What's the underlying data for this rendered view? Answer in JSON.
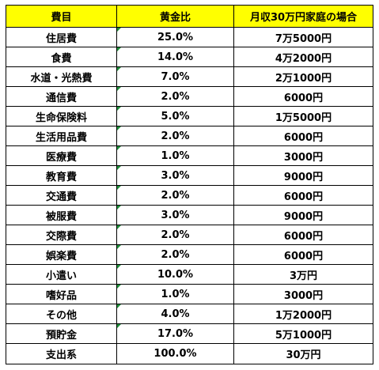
{
  "table": {
    "headers": [
      "費目",
      "黄金比",
      "月収30万円家庭の場合"
    ],
    "rows": [
      {
        "item": "住居費",
        "ratio": "25.0%",
        "amount": "7万5000円"
      },
      {
        "item": "食費",
        "ratio": "14.0%",
        "amount": "4万2000円"
      },
      {
        "item": "水道・光熱費",
        "ratio": "7.0%",
        "amount": "2万1000円"
      },
      {
        "item": "通信費",
        "ratio": "2.0%",
        "amount": "6000円"
      },
      {
        "item": "生命保険料",
        "ratio": "5.0%",
        "amount": "1万5000円"
      },
      {
        "item": "生活用品費",
        "ratio": "2.0%",
        "amount": "6000円"
      },
      {
        "item": "医療費",
        "ratio": "1.0%",
        "amount": "3000円"
      },
      {
        "item": "教育費",
        "ratio": "3.0%",
        "amount": "9000円"
      },
      {
        "item": "交通費",
        "ratio": "2.0%",
        "amount": "6000円"
      },
      {
        "item": "被服費",
        "ratio": "3.0%",
        "amount": "9000円"
      },
      {
        "item": "交際費",
        "ratio": "2.0%",
        "amount": "6000円"
      },
      {
        "item": "娯楽費",
        "ratio": "2.0%",
        "amount": "6000円"
      },
      {
        "item": "小遣い",
        "ratio": "10.0%",
        "amount": "3万円"
      },
      {
        "item": "嗜好品",
        "ratio": "1.0%",
        "amount": "3000円"
      },
      {
        "item": "その他",
        "ratio": "4.0%",
        "amount": "1万2000円"
      },
      {
        "item": "預貯金",
        "ratio": "17.0%",
        "amount": "5万1000円"
      },
      {
        "item": "支出系",
        "ratio": "100.0%",
        "amount": "30万円"
      }
    ]
  },
  "colors": {
    "header_bg": "#ffff00",
    "border": "#000000",
    "marker": "#1f8f3a"
  }
}
